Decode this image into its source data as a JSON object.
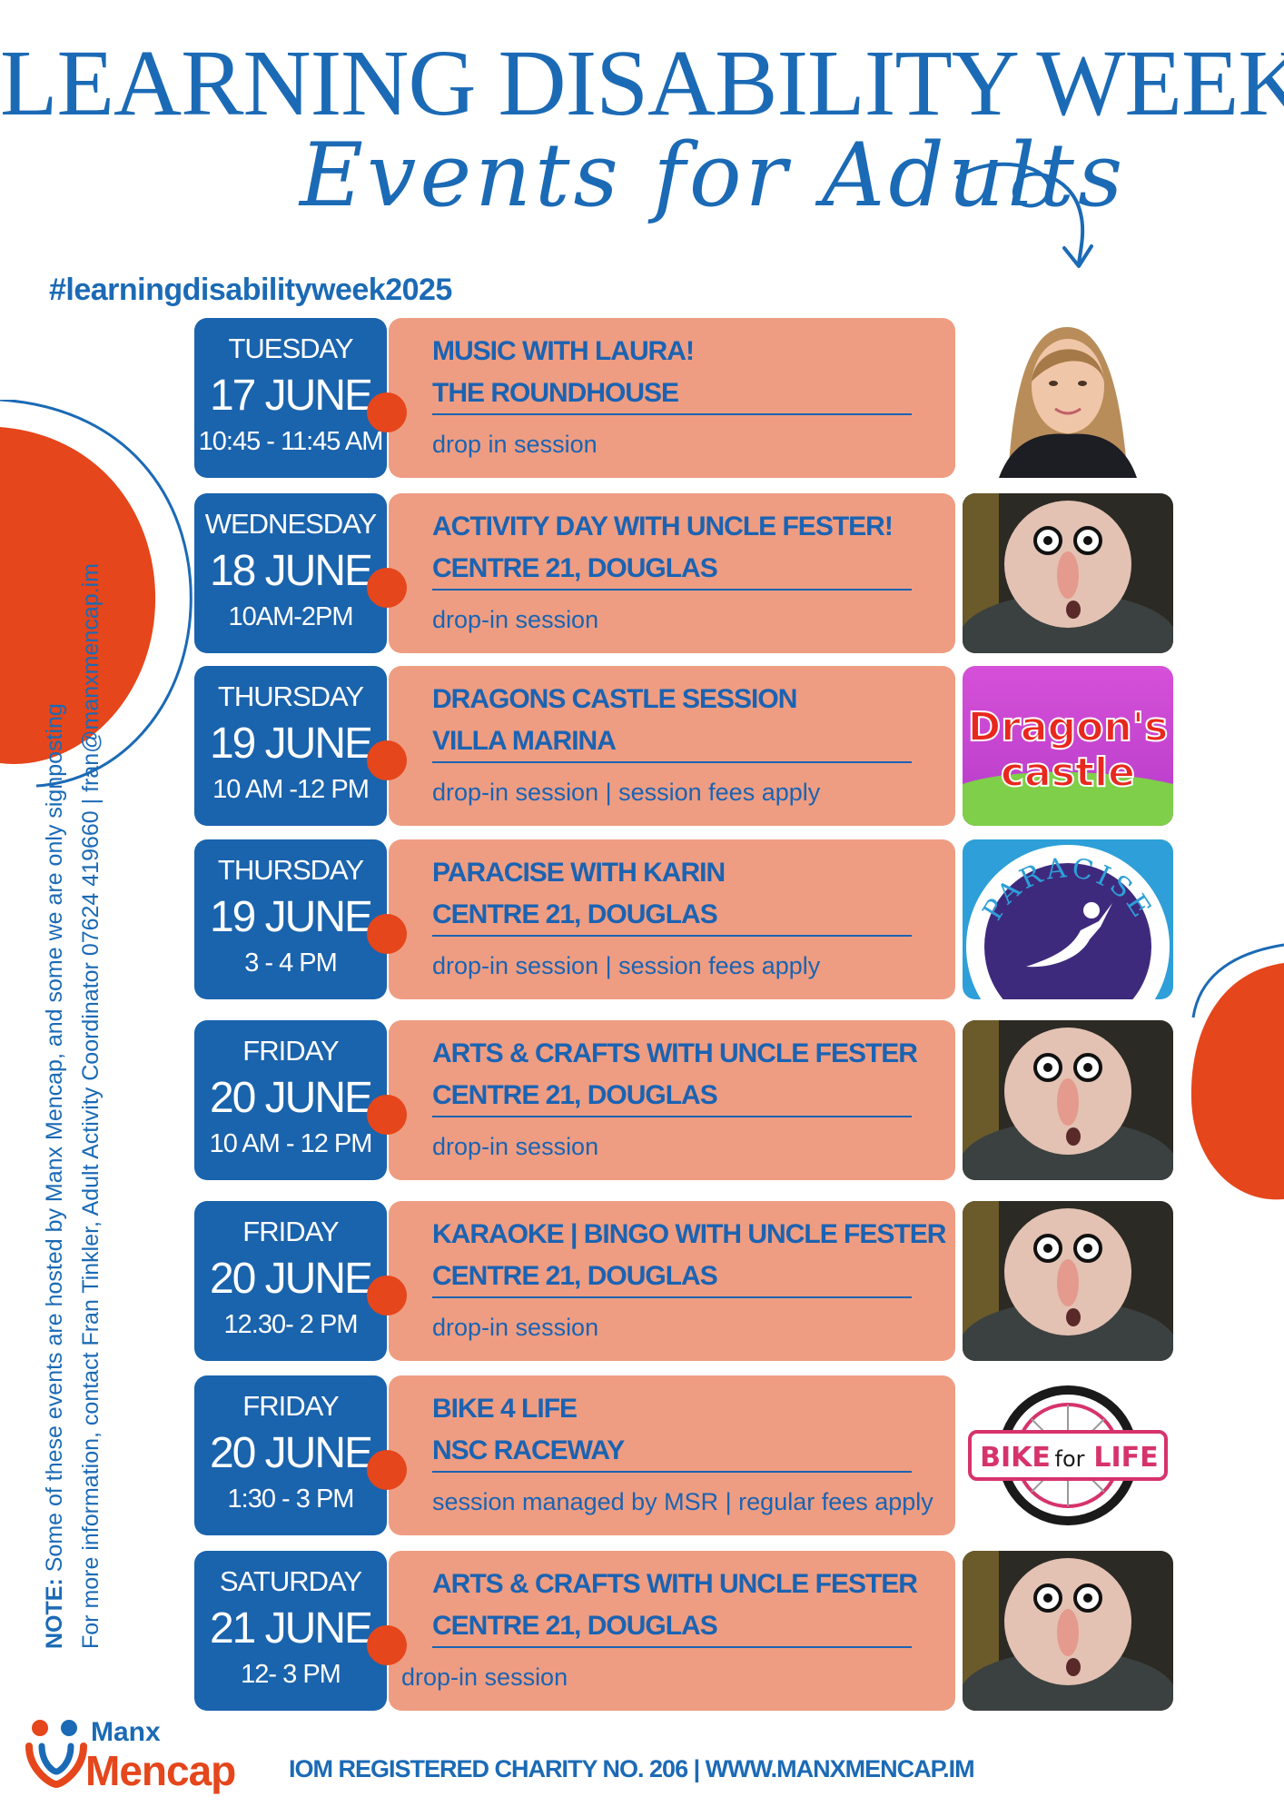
{
  "header": {
    "title": "LEARNING DISABILITY WEEK",
    "subtitle": "Events for Adults",
    "hashtag": "#learningdisabilityweek2025"
  },
  "note": {
    "label": "NOTE:",
    "line1": "Some of these events are hosted by Manx Mencap, and some we are only signposting",
    "line2": "For more information, contact Fran Tinkler, Adult Activity Coordinator 07624 419660 | fran@manxmencap.im"
  },
  "events": [
    {
      "day": "TUESDAY",
      "date": "17 JUNE",
      "time": "10:45 - 11:45 AM",
      "title": "MUSIC WITH LAURA!",
      "venue": "THE ROUNDHOUSE",
      "info": "drop in session",
      "image": "laura-portrait"
    },
    {
      "day": "WEDNESDAY",
      "date": "18 JUNE",
      "time": "10AM-2PM",
      "title": "ACTIVITY DAY WITH UNCLE FESTER!",
      "venue": "CENTRE 21, DOUGLAS",
      "info": "drop-in session",
      "image": "uncle-fester"
    },
    {
      "day": "THURSDAY",
      "date": "19 JUNE",
      "time": "10 AM -12 PM",
      "title": "DRAGONS CASTLE SESSION",
      "venue": "VILLA MARINA",
      "info": "drop-in session | session fees apply",
      "image": "dragons-castle-logo",
      "image_text": [
        "Dragon's",
        "castle"
      ]
    },
    {
      "day": "THURSDAY",
      "date": "19 JUNE",
      "time": "3 - 4 PM",
      "title": "PARACISE WITH KARIN",
      "venue": "CENTRE 21, DOUGLAS",
      "info": "drop-in session | session fees apply",
      "image": "paracise-logo",
      "image_text": [
        "PARACISE"
      ]
    },
    {
      "day": "FRIDAY",
      "date": "20 JUNE",
      "time": "10 AM - 12 PM",
      "title": "ARTS & CRAFTS WITH UNCLE FESTER",
      "venue": "CENTRE 21, DOUGLAS",
      "info": "drop-in session",
      "image": "uncle-fester"
    },
    {
      "day": "FRIDAY",
      "date": "20 JUNE",
      "time": "12.30- 2 PM",
      "title": "KARAOKE | BINGO WITH UNCLE FESTER",
      "venue": "CENTRE 21, DOUGLAS",
      "info": "drop-in session",
      "image": "uncle-fester"
    },
    {
      "day": "FRIDAY",
      "date": "20 JUNE",
      "time": "1:30 - 3 PM",
      "title": "BIKE 4 LIFE",
      "venue": "NSC RACEWAY",
      "info": "session managed by MSR | regular fees apply",
      "image": "bike-for-life-logo",
      "image_text": [
        "BIKE",
        "for",
        "LIFE"
      ]
    },
    {
      "day": "SATURDAY",
      "date": "21 JUNE",
      "time": "12- 3 PM",
      "title": "ARTS & CRAFTS WITH UNCLE FESTER",
      "venue": "CENTRE 21, DOUGLAS",
      "info": "drop-in session",
      "image": "uncle-fester"
    }
  ],
  "footer": {
    "logo_top": "Manx",
    "logo_bottom": "Mencap",
    "charity_text": "IOM REGISTERED CHARITY NO. 206 | WWW.MANXMENCAP.IM"
  },
  "colors": {
    "blue": "#1a63ad",
    "salmon": "#ee9d82",
    "orange": "#e5461b"
  }
}
